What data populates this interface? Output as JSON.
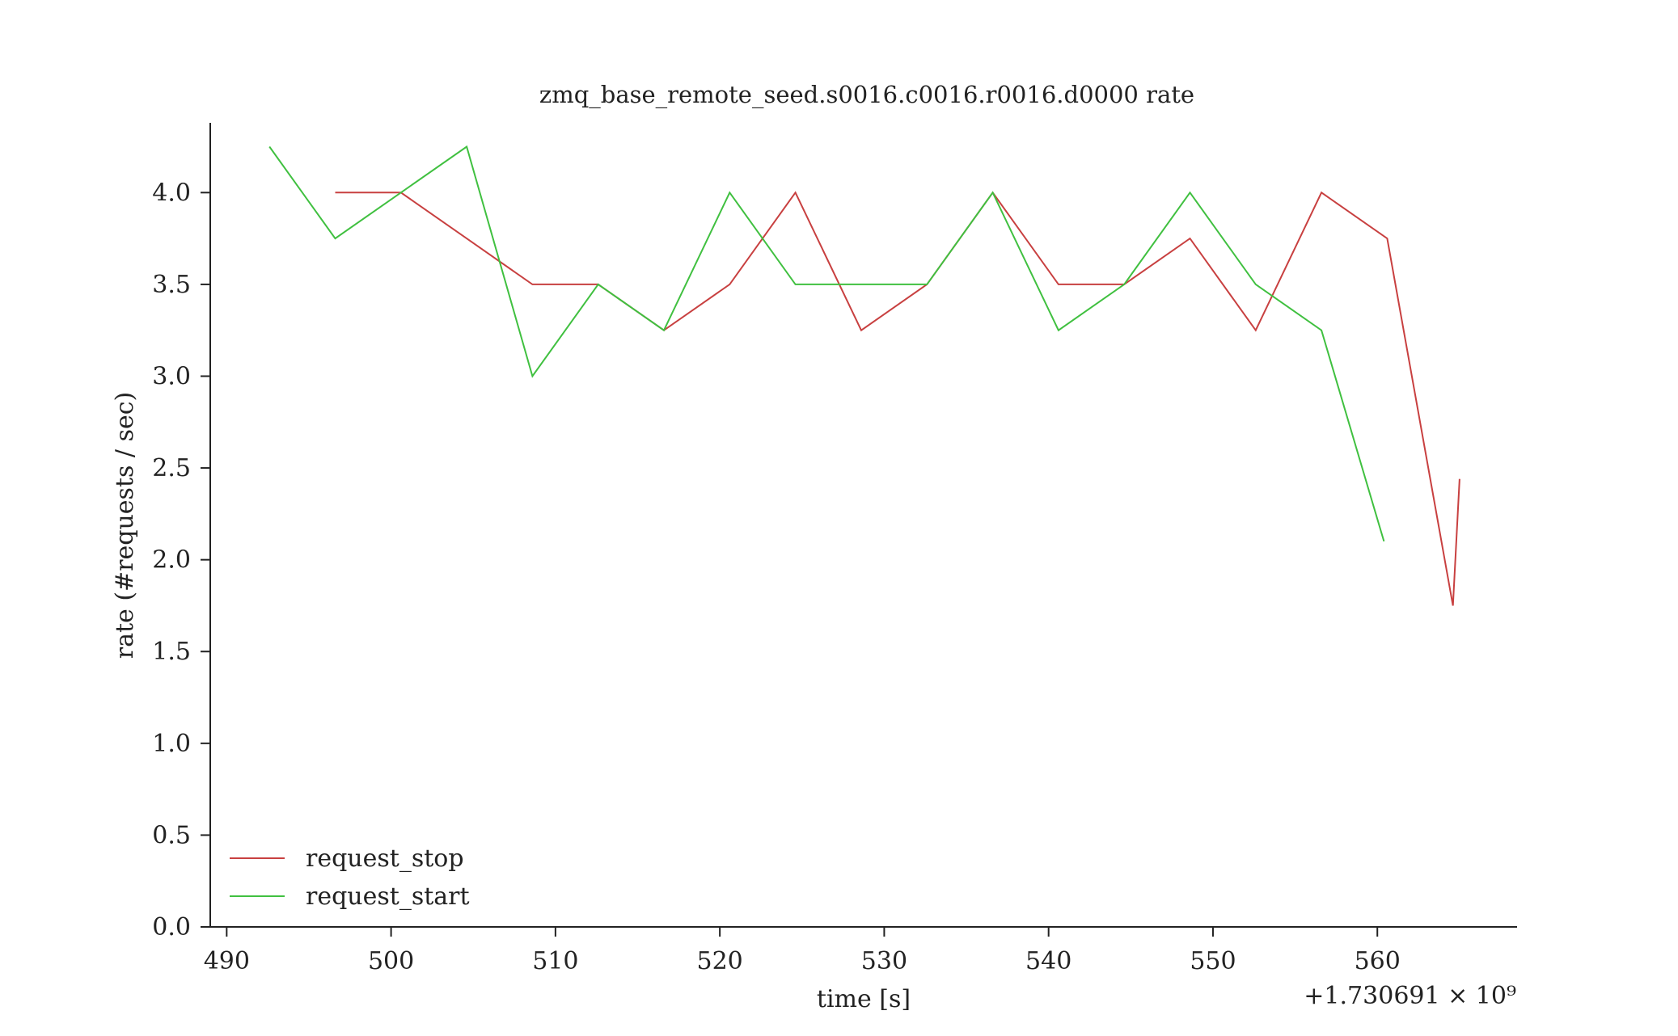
{
  "chart_data": {
    "type": "line",
    "title": "zmq_base_remote_seed.s0016.c0016.r0016.d0000 rate",
    "xlabel": "time [s]",
    "ylabel": "rate (#requests / sec)",
    "x_offset_label": "+1.730691 × 10⁹",
    "xlim": [
      489,
      568.5
    ],
    "ylim": [
      0,
      4.38
    ],
    "x_ticks": [
      490,
      500,
      510,
      520,
      530,
      540,
      550,
      560
    ],
    "x_tick_labels": [
      "490",
      "500",
      "510",
      "520",
      "530",
      "540",
      "550",
      "560"
    ],
    "y_ticks": [
      0.0,
      0.5,
      1.0,
      1.5,
      2.0,
      2.5,
      3.0,
      3.5,
      4.0
    ],
    "y_tick_labels": [
      "0.0",
      "0.5",
      "1.0",
      "1.5",
      "2.0",
      "2.5",
      "3.0",
      "3.5",
      "4.0"
    ],
    "grid": false,
    "legend_position": "lower-left",
    "series": [
      {
        "name": "request_stop",
        "color": "#c84040",
        "x": [
          496.6,
          500.6,
          504.6,
          508.6,
          512.6,
          516.6,
          520.6,
          524.6,
          528.6,
          532.6,
          536.6,
          540.6,
          544.6,
          548.6,
          552.6,
          556.6,
          560.6,
          564.6,
          565.0
        ],
        "y": [
          4.0,
          4.0,
          3.75,
          3.5,
          3.5,
          3.25,
          3.5,
          4.0,
          3.25,
          3.5,
          4.0,
          3.5,
          3.5,
          3.75,
          3.25,
          4.0,
          3.75,
          1.75,
          2.44
        ]
      },
      {
        "name": "request_start",
        "color": "#40c040",
        "x": [
          492.6,
          496.6,
          500.6,
          504.6,
          508.6,
          512.6,
          516.6,
          520.6,
          524.6,
          528.6,
          532.6,
          536.6,
          540.6,
          544.6,
          548.6,
          552.6,
          556.6,
          560.4
        ],
        "y": [
          4.25,
          3.75,
          4.0,
          4.25,
          3.0,
          3.5,
          3.25,
          4.0,
          3.5,
          3.5,
          3.5,
          4.0,
          3.25,
          3.5,
          4.0,
          3.5,
          3.25,
          2.1
        ]
      }
    ]
  }
}
